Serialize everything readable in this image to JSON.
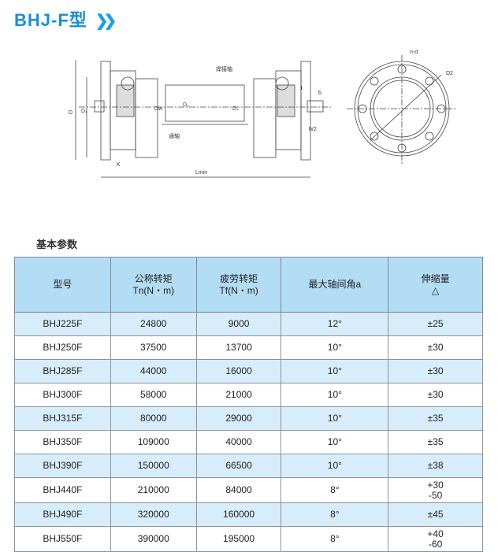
{
  "title": "BHJ-F型",
  "diagram_labels": {
    "weld_shaft": "焊接轴",
    "through_shaft": "通轴",
    "D": "D",
    "D1": "D₁",
    "Dw": "Dw",
    "D3": "D₃",
    "D4": "D₄",
    "K": "K",
    "Lmin": "Lmin",
    "t": "t",
    "b": "b",
    "h2": "h/2",
    "nd": "n-d",
    "D2": "D2"
  },
  "section_title": "基本参数",
  "table": {
    "headers": [
      [
        "型号",
        ""
      ],
      [
        "公称转矩",
        "Tn(N・m)"
      ],
      [
        "疲劳转矩",
        "Tf(N・m)"
      ],
      [
        "最大轴间角a",
        ""
      ],
      [
        "伸缩量",
        "△"
      ]
    ],
    "rows": [
      [
        "BHJ225F",
        "24800",
        "9000",
        "12°",
        "±25"
      ],
      [
        "BHJ250F",
        "37500",
        "13700",
        "10°",
        "±30"
      ],
      [
        "BHJ285F",
        "44000",
        "16000",
        "10°",
        "±30"
      ],
      [
        "BHJ300F",
        "58000",
        "21000",
        "10°",
        "±30"
      ],
      [
        "BHJ315F",
        "80000",
        "29000",
        "10°",
        "±35"
      ],
      [
        "BHJ350F",
        "109000",
        "40000",
        "10°",
        "±35"
      ],
      [
        "BHJ390F",
        "150000",
        "66500",
        "10°",
        "±38"
      ],
      [
        "BHJ440F",
        "210000",
        "84000",
        "8°",
        "+30\n-50"
      ],
      [
        "BHJ490F",
        "320000",
        "160000",
        "8°",
        "±45"
      ],
      [
        "BHJ550F",
        "390000",
        "195000",
        "8°",
        "+40\n-60"
      ]
    ]
  },
  "colors": {
    "accent": "#1a8fd6",
    "header_bg": "#b3dcf5",
    "row_alt": "#d8edfb"
  }
}
